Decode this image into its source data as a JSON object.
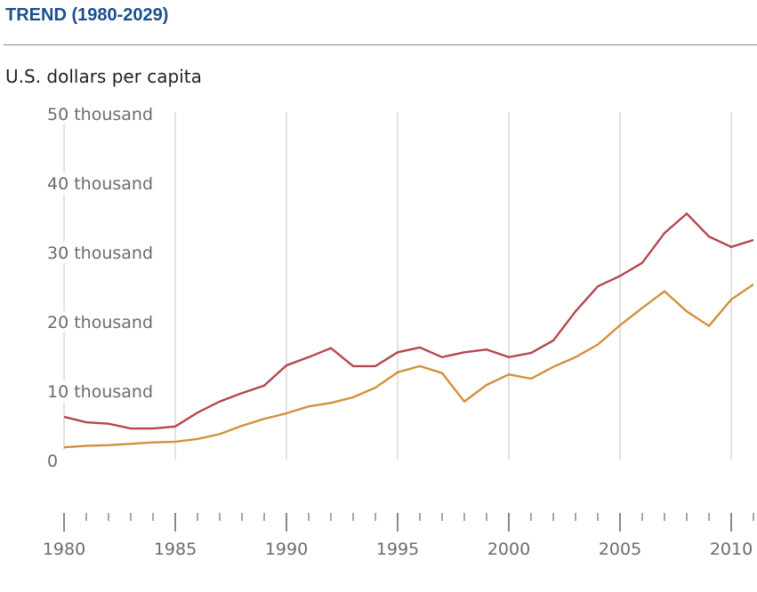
{
  "header": {
    "title": "TREND (1980-2029)",
    "unit_label": "U.S. dollars per capita"
  },
  "chart_data": {
    "type": "line",
    "title": "TREND (1980-2029)",
    "ylabel": "U.S. dollars per capita",
    "xlabel": "",
    "x": [
      1980,
      1981,
      1982,
      1983,
      1984,
      1985,
      1986,
      1987,
      1988,
      1989,
      1990,
      1991,
      1992,
      1993,
      1994,
      1995,
      1996,
      1997,
      1998,
      1999,
      2000,
      2001,
      2002,
      2003,
      2004,
      2005,
      2006,
      2007,
      2008,
      2009,
      2010,
      2011
    ],
    "series": [
      {
        "name": "red-series",
        "color": "#b5474f",
        "values": [
          6.3,
          5.5,
          5.3,
          4.6,
          4.6,
          4.9,
          6.9,
          8.5,
          9.7,
          10.8,
          13.7,
          14.9,
          16.2,
          13.6,
          13.6,
          15.6,
          16.3,
          14.9,
          15.6,
          16.0,
          14.9,
          15.5,
          17.3,
          21.5,
          25.1,
          26.6,
          28.5,
          32.8,
          35.6,
          32.3,
          30.8,
          31.8
        ]
      },
      {
        "name": "orange-series",
        "color": "#d4903a",
        "values": [
          1.9,
          2.1,
          2.2,
          2.4,
          2.6,
          2.7,
          3.1,
          3.8,
          5.0,
          6.0,
          6.8,
          7.8,
          8.3,
          9.1,
          10.5,
          12.7,
          13.6,
          12.6,
          8.5,
          10.9,
          12.4,
          11.8,
          13.5,
          14.9,
          16.7,
          19.5,
          22.0,
          24.4,
          21.5,
          19.4,
          23.2,
          25.4
        ]
      }
    ],
    "yticks": [
      {
        "value": 0,
        "label": "0"
      },
      {
        "value": 10,
        "label": "10 thousand"
      },
      {
        "value": 20,
        "label": "20 thousand"
      },
      {
        "value": 30,
        "label": "30 thousand"
      },
      {
        "value": 40,
        "label": "40 thousand"
      },
      {
        "value": 50,
        "label": "50 thousand"
      }
    ],
    "xticks_major": [
      {
        "value": 1980,
        "label": "1980"
      },
      {
        "value": 1985,
        "label": "1985"
      },
      {
        "value": 1990,
        "label": "1990"
      },
      {
        "value": 1995,
        "label": "1995"
      },
      {
        "value": 2000,
        "label": "2000"
      },
      {
        "value": 2005,
        "label": "2005"
      },
      {
        "value": 2010,
        "label": "2010"
      }
    ],
    "ylim": [
      0,
      50
    ],
    "xlim": [
      1980,
      2011.2
    ],
    "y_unit": "thousand U.S. dollars",
    "grid": "vertical at major x ticks",
    "legend": "none"
  }
}
